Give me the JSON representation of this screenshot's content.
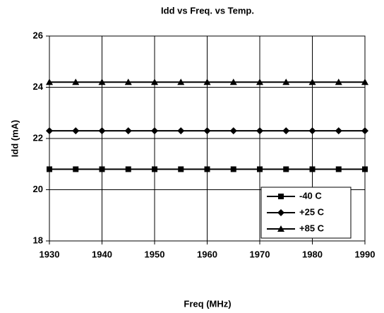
{
  "chart_data": {
    "type": "line",
    "title": "Idd vs Freq. vs Temp.",
    "x_label": "Freq (MHz)",
    "y_label": "Idd (mA)",
    "x": [
      1930,
      1935,
      1940,
      1945,
      1950,
      1955,
      1960,
      1965,
      1970,
      1975,
      1980,
      1985,
      1990
    ],
    "series": [
      {
        "name": "-40 C",
        "color": "#000000",
        "marker": "square",
        "values": [
          20.8,
          20.8,
          20.8,
          20.8,
          20.8,
          20.8,
          20.8,
          20.8,
          20.8,
          20.8,
          20.8,
          20.8,
          20.8
        ]
      },
      {
        "name": "+25 C",
        "color": "#000000",
        "marker": "diamond",
        "values": [
          22.3,
          22.3,
          22.3,
          22.3,
          22.3,
          22.3,
          22.3,
          22.3,
          22.3,
          22.3,
          22.3,
          22.3,
          22.3
        ]
      },
      {
        "name": "+85 C",
        "color": "#000000",
        "marker": "triangle",
        "values": [
          24.2,
          24.2,
          24.2,
          24.2,
          24.2,
          24.2,
          24.2,
          24.2,
          24.2,
          24.2,
          24.2,
          24.2,
          24.2
        ]
      }
    ],
    "xlim": [
      1930,
      1990
    ],
    "xticks": [
      1930,
      1940,
      1950,
      1960,
      1970,
      1980,
      1990
    ],
    "ylim": [
      18,
      26
    ],
    "yticks": [
      18,
      20,
      22,
      24,
      26
    ],
    "grid": true,
    "legend": "lower right"
  }
}
